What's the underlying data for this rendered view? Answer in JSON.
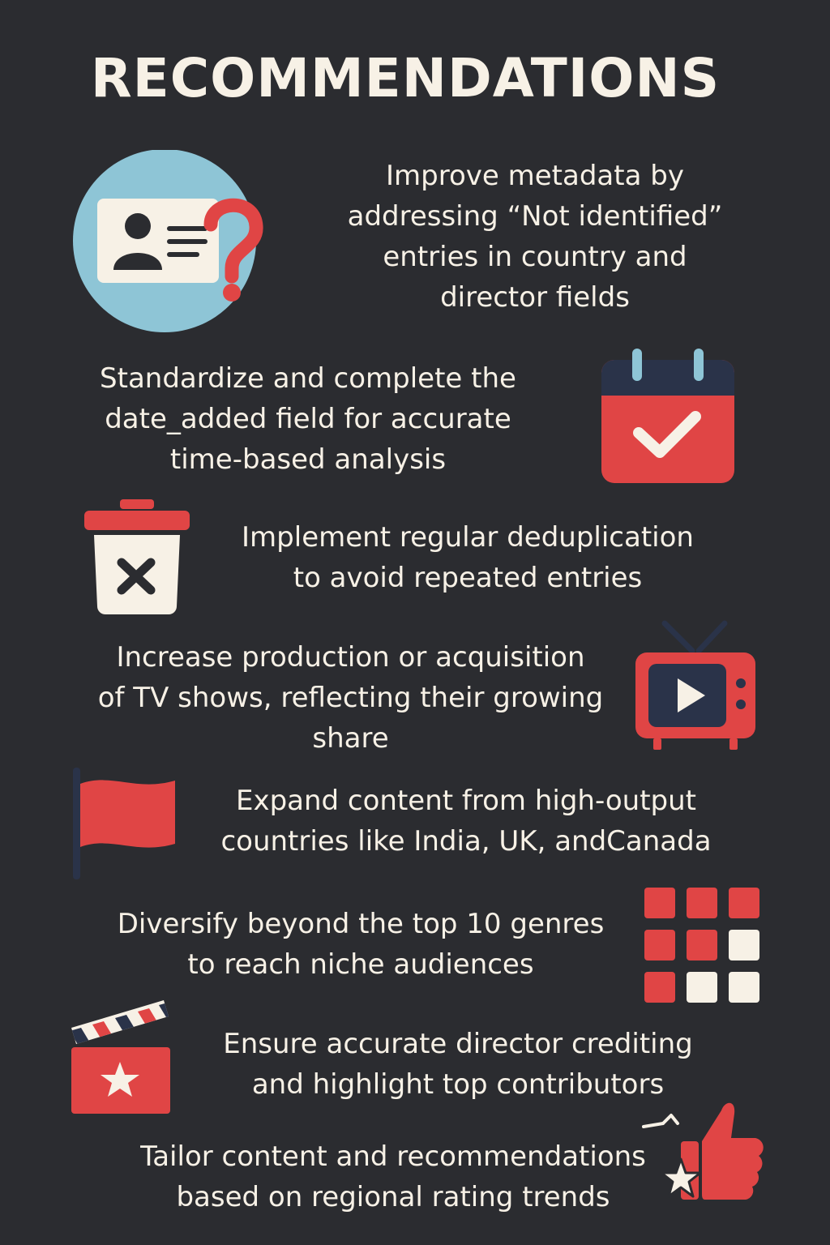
{
  "title": "RECOMMENDATIONS",
  "colors": {
    "background": "#2b2c30",
    "text": "#f7f1e6",
    "accent_red": "#e04545",
    "navy": "#2a3349",
    "light_blue": "#8ec5d6",
    "cream": "#f7f1e6"
  },
  "recommendations": [
    {
      "icon": "id-card-question-icon",
      "text": "Improve metadata by\naddressing “Not identified”\nentries in country and\ndirector fields"
    },
    {
      "icon": "calendar-check-icon",
      "text": "Standardize and complete the\ndate_added field for accurate\ntime-based analysis"
    },
    {
      "icon": "trash-bin-x-icon",
      "text": "Implement regular deduplication\nto avoid repeated entries"
    },
    {
      "icon": "tv-play-icon",
      "text": "Increase production or acquisition\nof TV shows, reflecting their growing\nshare"
    },
    {
      "icon": "flag-icon",
      "text": "Expand content from high-output\ncountries like India, UK, andCanada"
    },
    {
      "icon": "genre-grid-icon",
      "text": "Diversify beyond the top 10 genres\nto reach niche audiences"
    },
    {
      "icon": "clapperboard-star-icon",
      "text": "Ensure accurate director crediting\nand highlight top contributors"
    },
    {
      "icon": "thumbs-up-star-icon",
      "text": "Tailor content and recommendations\nbased on regional rating trends"
    }
  ]
}
